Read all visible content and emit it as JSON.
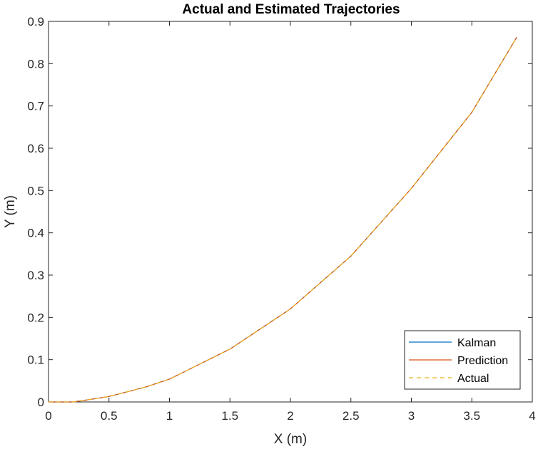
{
  "chart_data": {
    "type": "line",
    "title": "Actual and Estimated Trajectories",
    "xlabel": "X (m)",
    "ylabel": "Y (m)",
    "xlim": [
      0,
      4
    ],
    "ylim": [
      0,
      0.9
    ],
    "xticks": [
      0,
      0.5,
      1,
      1.5,
      2,
      2.5,
      3,
      3.5,
      4
    ],
    "xtick_labels": [
      "0",
      "0.5",
      "1",
      "1.5",
      "2",
      "2.5",
      "3",
      "3.5",
      "4"
    ],
    "yticks": [
      0,
      0.1,
      0.2,
      0.3,
      0.4,
      0.5,
      0.6,
      0.7,
      0.8,
      0.9
    ],
    "ytick_labels": [
      "0",
      "0.1",
      "0.2",
      "0.3",
      "0.4",
      "0.5",
      "0.6",
      "0.7",
      "0.8",
      "0.9"
    ],
    "grid": false,
    "legend_position": "bottom-right",
    "series": [
      {
        "name": "Kalman",
        "color": "#0072BD",
        "style": "solid",
        "x": [
          0,
          0.2,
          0.3,
          0.5,
          0.8,
          1.0,
          1.5,
          2.0,
          2.5,
          3.0,
          3.5,
          3.87
        ],
        "y": [
          0,
          0,
          0.004,
          0.013,
          0.035,
          0.054,
          0.125,
          0.22,
          0.345,
          0.505,
          0.685,
          0.862
        ]
      },
      {
        "name": "Prediction",
        "color": "#D95319",
        "style": "solid",
        "x": [
          0,
          0.2,
          0.3,
          0.5,
          0.8,
          1.0,
          1.5,
          2.0,
          2.5,
          3.0,
          3.5,
          3.87
        ],
        "y": [
          0,
          0,
          0.004,
          0.013,
          0.035,
          0.054,
          0.125,
          0.22,
          0.345,
          0.505,
          0.685,
          0.862
        ]
      },
      {
        "name": "Actual",
        "color": "#EDB120",
        "style": "dashed",
        "x": [
          0,
          0.2,
          0.3,
          0.5,
          0.8,
          1.0,
          1.5,
          2.0,
          2.5,
          3.0,
          3.5,
          3.87
        ],
        "y": [
          0,
          0,
          0.004,
          0.013,
          0.035,
          0.054,
          0.125,
          0.22,
          0.345,
          0.505,
          0.685,
          0.862
        ]
      }
    ]
  }
}
